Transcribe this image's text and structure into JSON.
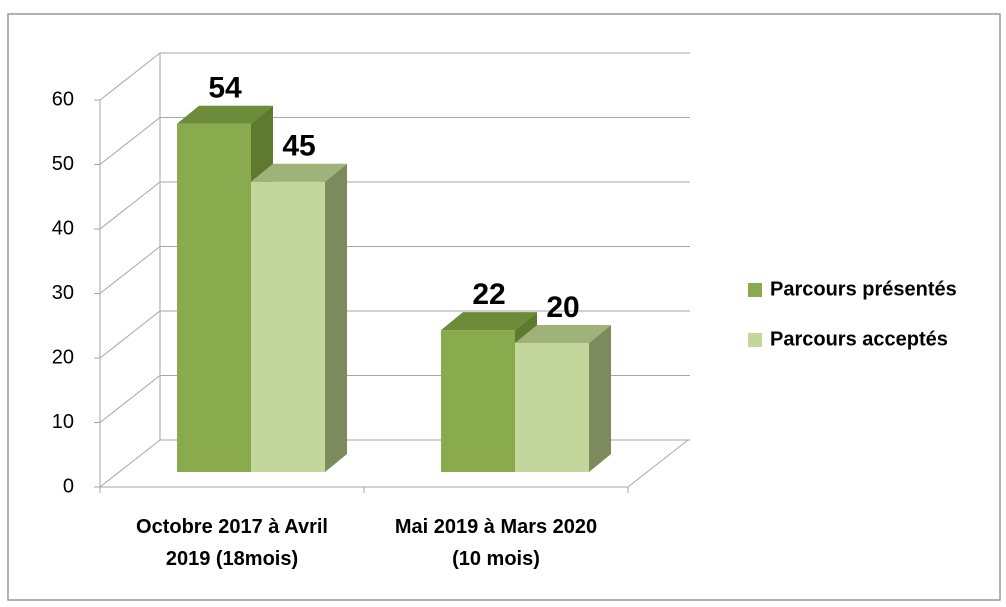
{
  "chart_data": {
    "type": "bar3d",
    "categories": [
      "Octobre 2017 à Avril 2019 (18mois)",
      "Mai 2019 à Mars 2020 (10 mois)"
    ],
    "series": [
      {
        "name": "Parcours présentés",
        "color": "#8aaa4e",
        "values": [
          54,
          22
        ]
      },
      {
        "name": "Parcours acceptés",
        "color": "#c3d69b",
        "values": [
          45,
          20
        ]
      }
    ],
    "ylim": [
      0,
      60
    ],
    "yticks": [
      0,
      10,
      20,
      30,
      40,
      50,
      60
    ],
    "grid": true,
    "legend": "right"
  }
}
